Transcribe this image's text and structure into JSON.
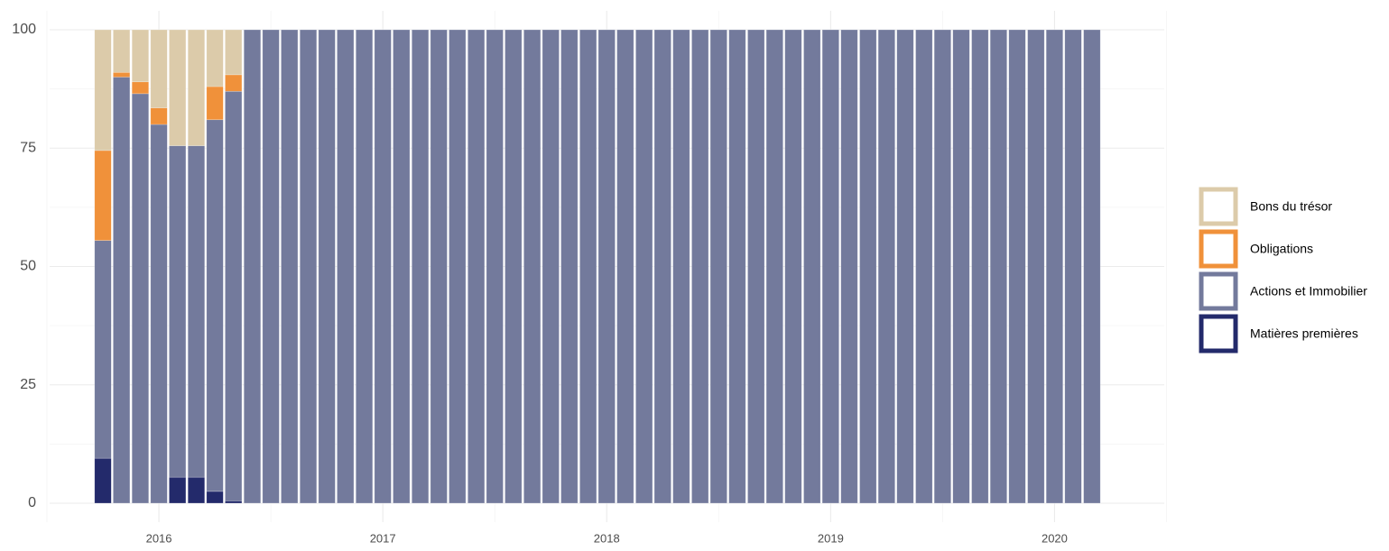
{
  "chart_data": {
    "type": "stacked_bar",
    "x": [
      2015.75,
      2015.833,
      2015.917,
      2016,
      2016.083,
      2016.167,
      2016.25,
      2016.333,
      2016.417,
      2016.5,
      2016.583,
      2016.667,
      2016.75,
      2016.833,
      2016.917,
      2017,
      2017.083,
      2017.167,
      2017.25,
      2017.333,
      2017.417,
      2017.5,
      2017.583,
      2017.667,
      2017.75,
      2017.833,
      2017.917,
      2018,
      2018.083,
      2018.167,
      2018.25,
      2018.333,
      2018.417,
      2018.5,
      2018.583,
      2018.667,
      2018.75,
      2018.833,
      2018.917,
      2019,
      2019.083,
      2019.167,
      2019.25,
      2019.333,
      2019.417,
      2019.5,
      2019.583,
      2019.667,
      2019.75,
      2019.833,
      2019.917,
      2020,
      2020.083,
      2020.167
    ],
    "series": [
      {
        "name": "Matières premières",
        "color": "#232a6b",
        "values": [
          9.5,
          0,
          0,
          0,
          5.5,
          5.5,
          2.5,
          0.5,
          0,
          0,
          0,
          0,
          0,
          0,
          0,
          0,
          0,
          0,
          0,
          0,
          0,
          0,
          0,
          0,
          0,
          0,
          0,
          0,
          0,
          0,
          0,
          0,
          0,
          0,
          0,
          0,
          0,
          0,
          0,
          0,
          0,
          0,
          0,
          0,
          0,
          0,
          0,
          0,
          0,
          0,
          0,
          0,
          0,
          0
        ]
      },
      {
        "name": "Actions et Immobilier",
        "color": "#737a9c",
        "values": [
          46,
          90,
          86.5,
          80,
          70,
          70,
          78.5,
          86.5,
          100,
          100,
          100,
          100,
          100,
          100,
          100,
          100,
          100,
          100,
          100,
          100,
          100,
          100,
          100,
          100,
          100,
          100,
          100,
          100,
          100,
          100,
          100,
          100,
          100,
          100,
          100,
          100,
          100,
          100,
          100,
          100,
          100,
          100,
          100,
          100,
          100,
          100,
          100,
          100,
          100,
          100,
          100,
          100,
          100,
          100
        ]
      },
      {
        "name": "Obligations",
        "color": "#f0913a",
        "values": [
          19,
          1,
          2.5,
          3.5,
          0,
          0,
          7,
          3.5,
          0,
          0,
          0,
          0,
          0,
          0,
          0,
          0,
          0,
          0,
          0,
          0,
          0,
          0,
          0,
          0,
          0,
          0,
          0,
          0,
          0,
          0,
          0,
          0,
          0,
          0,
          0,
          0,
          0,
          0,
          0,
          0,
          0,
          0,
          0,
          0,
          0,
          0,
          0,
          0,
          0,
          0,
          0,
          0,
          0,
          0
        ]
      },
      {
        "name": "Bons du trésor",
        "color": "#dccbaa",
        "values": [
          25.5,
          9,
          11,
          16.5,
          24.5,
          24.5,
          12,
          9.5,
          0,
          0,
          0,
          0,
          0,
          0,
          0,
          0,
          0,
          0,
          0,
          0,
          0,
          0,
          0,
          0,
          0,
          0,
          0,
          0,
          0,
          0,
          0,
          0,
          0,
          0,
          0,
          0,
          0,
          0,
          0,
          0,
          0,
          0,
          0,
          0,
          0,
          0,
          0,
          0,
          0,
          0,
          0,
          0,
          0,
          0
        ]
      }
    ],
    "xlim": [
      2015.512,
      2020.49
    ],
    "xticks": [
      2016,
      2017,
      2018,
      2019,
      2020
    ],
    "ylim": [
      -4,
      104
    ],
    "yticks": [
      0,
      25,
      50,
      75,
      100
    ],
    "grid": true,
    "legend": "right"
  }
}
